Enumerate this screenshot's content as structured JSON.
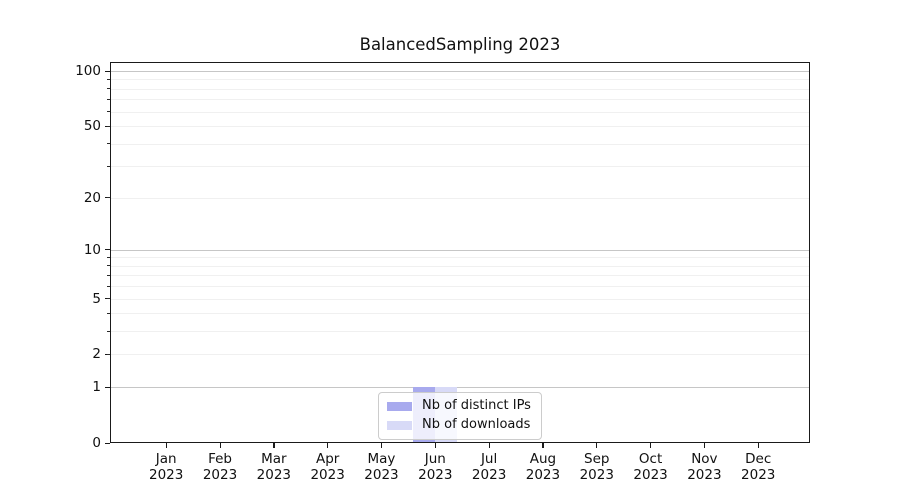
{
  "title": "BalancedSampling 2023",
  "legend": {
    "items": [
      {
        "label": "Nb of distinct IPs",
        "color": "#a8aaee"
      },
      {
        "label": "Nb of downloads",
        "color": "#d8daf7"
      }
    ],
    "position": "lower center"
  },
  "axes": {
    "ytick_labels": [
      "100",
      "50",
      "20",
      "10",
      "5",
      "2",
      "1",
      "0"
    ],
    "months": [
      "Jan",
      "Feb",
      "Mar",
      "Apr",
      "May",
      "Jun",
      "Jul",
      "Aug",
      "Sep",
      "Oct",
      "Nov",
      "Dec"
    ],
    "year": "2023"
  },
  "chart_data": {
    "type": "bar",
    "title": "BalancedSampling 2023",
    "xlabel": "",
    "ylabel": "",
    "categories": [
      "Jan 2023",
      "Feb 2023",
      "Mar 2023",
      "Apr 2023",
      "May 2023",
      "Jun 2023",
      "Jul 2023",
      "Aug 2023",
      "Sep 2023",
      "Oct 2023",
      "Nov 2023",
      "Dec 2023"
    ],
    "series": [
      {
        "name": "Nb of distinct IPs",
        "color": "#a8aaee",
        "values": [
          0,
          0,
          0,
          0,
          0,
          1,
          0,
          0,
          0,
          0,
          0,
          0
        ]
      },
      {
        "name": "Nb of downloads",
        "color": "#d8daf7",
        "values": [
          0,
          0,
          0,
          0,
          0,
          1,
          0,
          0,
          0,
          0,
          0,
          0
        ]
      }
    ],
    "yscale": "log1p",
    "ylim": [
      0,
      112
    ],
    "yticks": [
      100,
      50,
      20,
      10,
      5,
      2,
      1,
      0
    ],
    "y_major_gridlines": [
      1,
      10,
      100
    ],
    "y_minor_gridlines": [
      2,
      3,
      4,
      5,
      6,
      7,
      8,
      9,
      20,
      30,
      40,
      50,
      60,
      70,
      80,
      90
    ],
    "grid": true,
    "legend_position": "lower center"
  }
}
